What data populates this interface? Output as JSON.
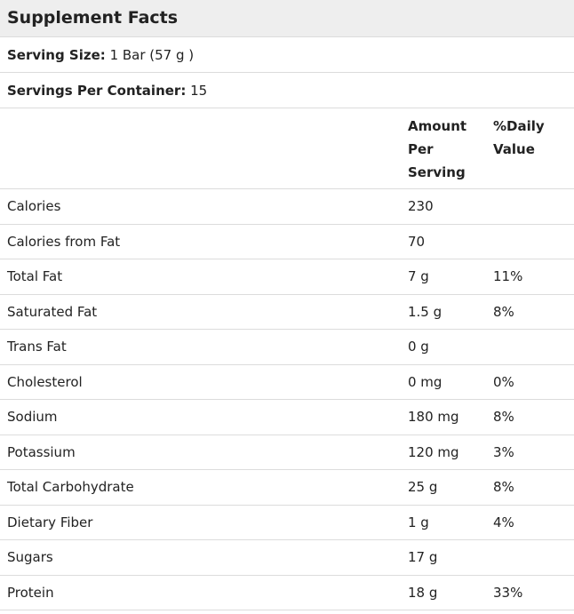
{
  "title": "Supplement Facts",
  "serving_size": {
    "label": "Serving Size:",
    "value": "1 Bar (57 g )"
  },
  "servings_per_container": {
    "label": "Servings Per Container:",
    "value": "15"
  },
  "table": {
    "columns": [
      "Amount Per Serving",
      "%Daily Value"
    ],
    "rows": [
      {
        "name": "Calories",
        "amount": "230"
      },
      {
        "name": "Calories from Fat",
        "amount": "70"
      },
      {
        "name": "Total Fat",
        "amount": "7 g",
        "daily_value": "11%"
      },
      {
        "name": "Saturated Fat",
        "amount": "1.5 g",
        "daily_value": "8%"
      },
      {
        "name": "Trans Fat",
        "amount": "0 g"
      },
      {
        "name": "Cholesterol",
        "amount": "0 mg",
        "daily_value": "0%"
      },
      {
        "name": "Sodium",
        "amount": "180 mg",
        "daily_value": "8%"
      },
      {
        "name": "Potassium",
        "amount": "120 mg",
        "daily_value": "3%"
      },
      {
        "name": "Total Carbohydrate",
        "amount": "25 g",
        "daily_value": "8%"
      },
      {
        "name": "Dietary Fiber",
        "amount": "1 g",
        "daily_value": "4%"
      },
      {
        "name": "Sugars",
        "amount": "17 g"
      },
      {
        "name": "Protein",
        "amount": "18 g",
        "daily_value": "33%"
      }
    ]
  }
}
